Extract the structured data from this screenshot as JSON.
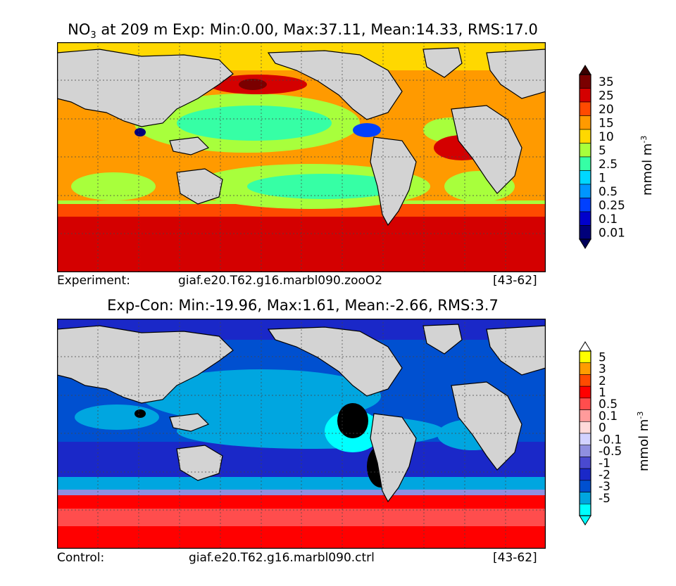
{
  "panels": [
    {
      "title_prefix": "NO",
      "title_sub": "3",
      "title_rest": " at 209 m Exp: Min:0.00, Max:37.11, Mean:14.33, RMS:17.0",
      "caption_left": "Experiment:",
      "caption_center": "giaf.e20.T62.g16.marbl090.zooO2",
      "caption_right": "[43-62]",
      "unit_base": "mmol m",
      "unit_sup": "-3"
    },
    {
      "title_prefix": "",
      "title_sub": "",
      "title_rest": "Exp-Con: Min:-19.96, Max:1.61, Mean:-2.66, RMS:3.7",
      "caption_left": "Control:",
      "caption_center": "giaf.e20.T62.g16.marbl090.ctrl",
      "caption_right": "[43-62]",
      "unit_base": "mmol m",
      "unit_sup": "-3"
    }
  ],
  "chart_data": [
    {
      "type": "heatmap",
      "title": "NO3 at 209 m Exp: Min:0.00, Max:37.11, Mean:14.33, RMS:17.0",
      "variable": "NO3",
      "depth_m": 209,
      "stats": {
        "min": 0.0,
        "max": 37.11,
        "mean": 14.33,
        "rms": 17.0
      },
      "colorbar": {
        "label": "mmol m^-3",
        "levels": [
          "35",
          "25",
          "20",
          "15",
          "10",
          "5",
          "2.5",
          "1",
          "0.5",
          "0.25",
          "0.1",
          "0.01"
        ],
        "colors": [
          "#7a0000",
          "#d40000",
          "#ff4a00",
          "#ff9a00",
          "#ffd800",
          "#a8ff3c",
          "#36ffa5",
          "#00d7ff",
          "#0096ff",
          "#0040ff",
          "#0000cc",
          "#00007a"
        ],
        "extend": "both"
      },
      "grid": true
    },
    {
      "type": "heatmap",
      "title": "Exp-Con: Min:-19.96, Max:1.61, Mean:-2.66, RMS:3.7",
      "stats": {
        "min": -19.96,
        "max": 1.61,
        "mean": -2.66,
        "rms": 3.7
      },
      "colorbar": {
        "label": "mmol m^-3",
        "levels": [
          "5",
          "3",
          "2",
          "1",
          "0.5",
          "0.1",
          "0",
          "-0.1",
          "-0.5",
          "-1",
          "-2",
          "-3",
          "-5"
        ],
        "colors": [
          "#ffff00",
          "#ff9d00",
          "#ff4b00",
          "#ff0000",
          "#ff4d4d",
          "#ff9b9b",
          "#ffdada",
          "#d2d2ff",
          "#8f8fe0",
          "#4a4ad0",
          "#1a28c8",
          "#0050d0",
          "#00a6e0",
          "#00ffff"
        ],
        "extend": "both"
      },
      "grid": true
    }
  ]
}
